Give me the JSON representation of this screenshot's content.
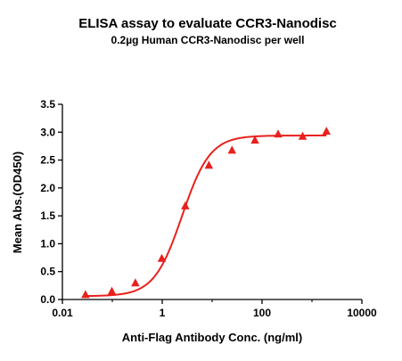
{
  "chart_data": {
    "type": "scatter",
    "title": "ELISA assay to evaluate CCR3-Nanodisc",
    "subtitle": "0.2µg Human CCR3-Nanodisc per well",
    "xlabel": "Anti-Flag Antibody Conc. (ng/ml)",
    "ylabel": "Mean Abs.(OD450)",
    "x_scale": "log",
    "xlim": [
      0.01,
      10000
    ],
    "ylim": [
      0.0,
      3.5
    ],
    "x_ticks": [
      0.01,
      1,
      100,
      10000
    ],
    "x_tick_labels": [
      "0.01",
      "1",
      "100",
      "10000"
    ],
    "y_ticks": [
      0.0,
      0.5,
      1.0,
      1.5,
      2.0,
      2.5,
      3.0,
      3.5
    ],
    "y_tick_labels": [
      "0.0",
      "0.5",
      "1.0",
      "1.5",
      "2.0",
      "2.5",
      "3.0",
      "3.5"
    ],
    "grid": false,
    "legend": "none",
    "series": [
      {
        "marker": "triangle",
        "color": "#e8211c",
        "x": [
          0.029,
          0.098,
          0.29,
          0.98,
          2.9,
          8.6,
          25,
          72,
          210,
          650,
          1950
        ],
        "y": [
          0.08,
          0.14,
          0.29,
          0.73,
          1.67,
          2.4,
          2.67,
          2.85,
          2.96,
          2.92,
          3.01
        ]
      }
    ],
    "fit_curve": {
      "model": "4PL",
      "color": "#e8211c",
      "bottom": 0.06,
      "top": 2.94,
      "ec50": 2.5,
      "hill": 1.55
    }
  }
}
